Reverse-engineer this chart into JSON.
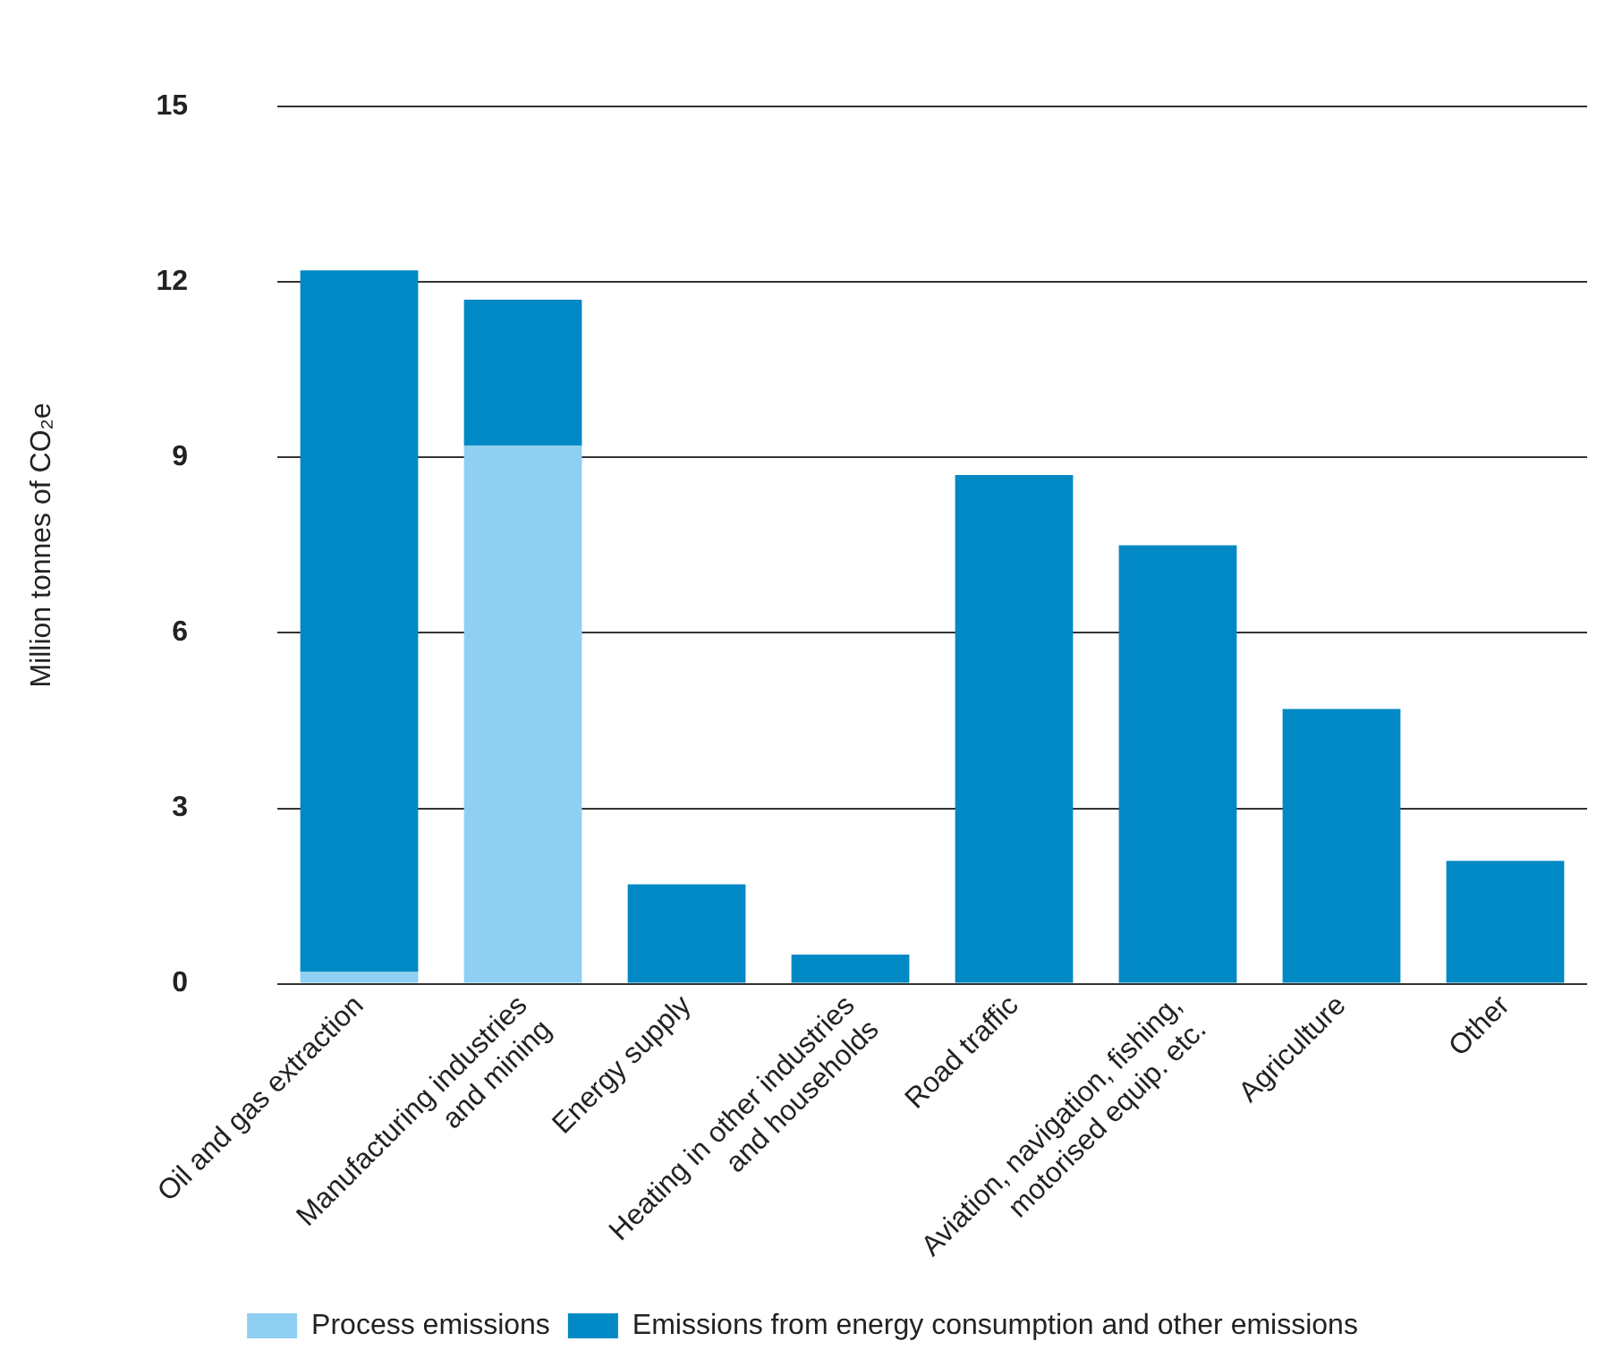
{
  "chart_data": {
    "type": "bar",
    "stacked": true,
    "ylabel": "Million tonnes of CO₂e",
    "categories": [
      "Oil and gas extraction",
      "Manufacturing industries\nand mining",
      "Energy supply",
      "Heating in other industries\nand households",
      "Road traffic",
      "Aviation, navigation, fishing,\nmotorised equip. etc.",
      "Agriculture",
      "Other"
    ],
    "series": [
      {
        "name": "Process emissions",
        "color": "#8fd0f2",
        "values": [
          0.2,
          9.2,
          0,
          0,
          0,
          0,
          0,
          0
        ]
      },
      {
        "name": "Emissions from energy consumption and other emissions",
        "color": "#0089c4",
        "values": [
          12.0,
          2.5,
          1.7,
          0.5,
          8.7,
          7.5,
          4.7,
          2.1
        ]
      }
    ],
    "ylim": [
      0,
      15
    ],
    "yticks": [
      0,
      3,
      6,
      9,
      12,
      15
    ],
    "grid": "y",
    "legend": "bottom"
  }
}
